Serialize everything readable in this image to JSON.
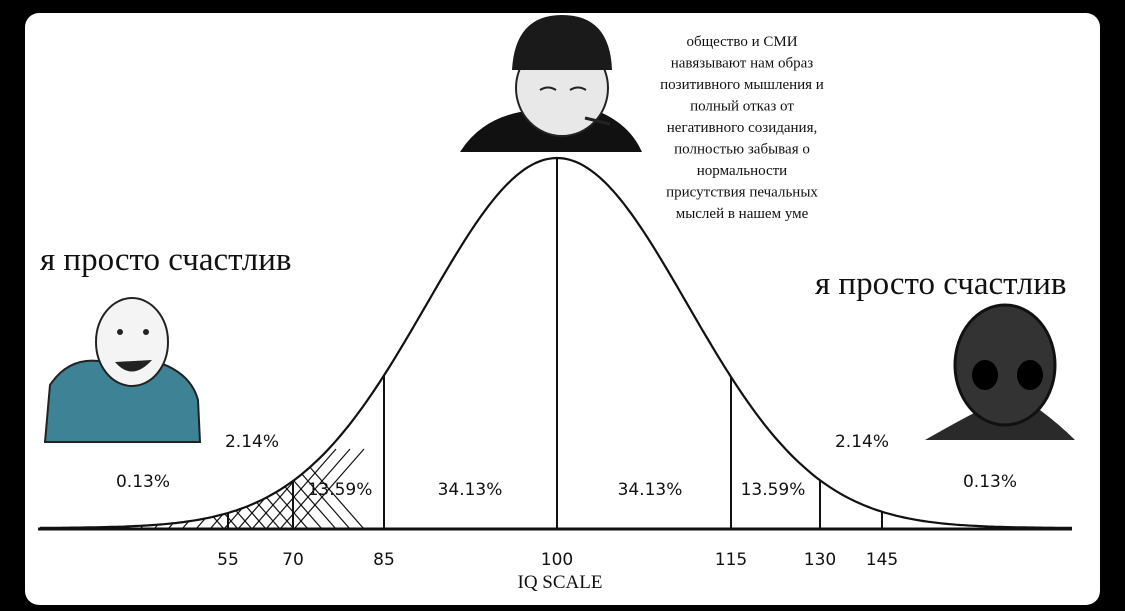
{
  "captions": {
    "left": "я просто счастлив",
    "right": "я просто счастлив"
  },
  "quote_lines": [
    "общество и СМИ",
    "навязывают нам образ",
    "позитивного мышления и",
    "полный отказ от",
    "негативного созидания,",
    "полностью забывая о",
    "нормальности",
    "присутствия печальных",
    "мыслей в нашем уме"
  ],
  "percentages": [
    "2.14%",
    "0.13%",
    "13.59%",
    "34.13%",
    "34.13%",
    "13.59%",
    "2.14%",
    "0.13%"
  ],
  "iq_ticks": [
    55,
    70,
    85,
    100,
    115,
    130,
    145
  ],
  "axis_label": "IQ SCALE"
}
